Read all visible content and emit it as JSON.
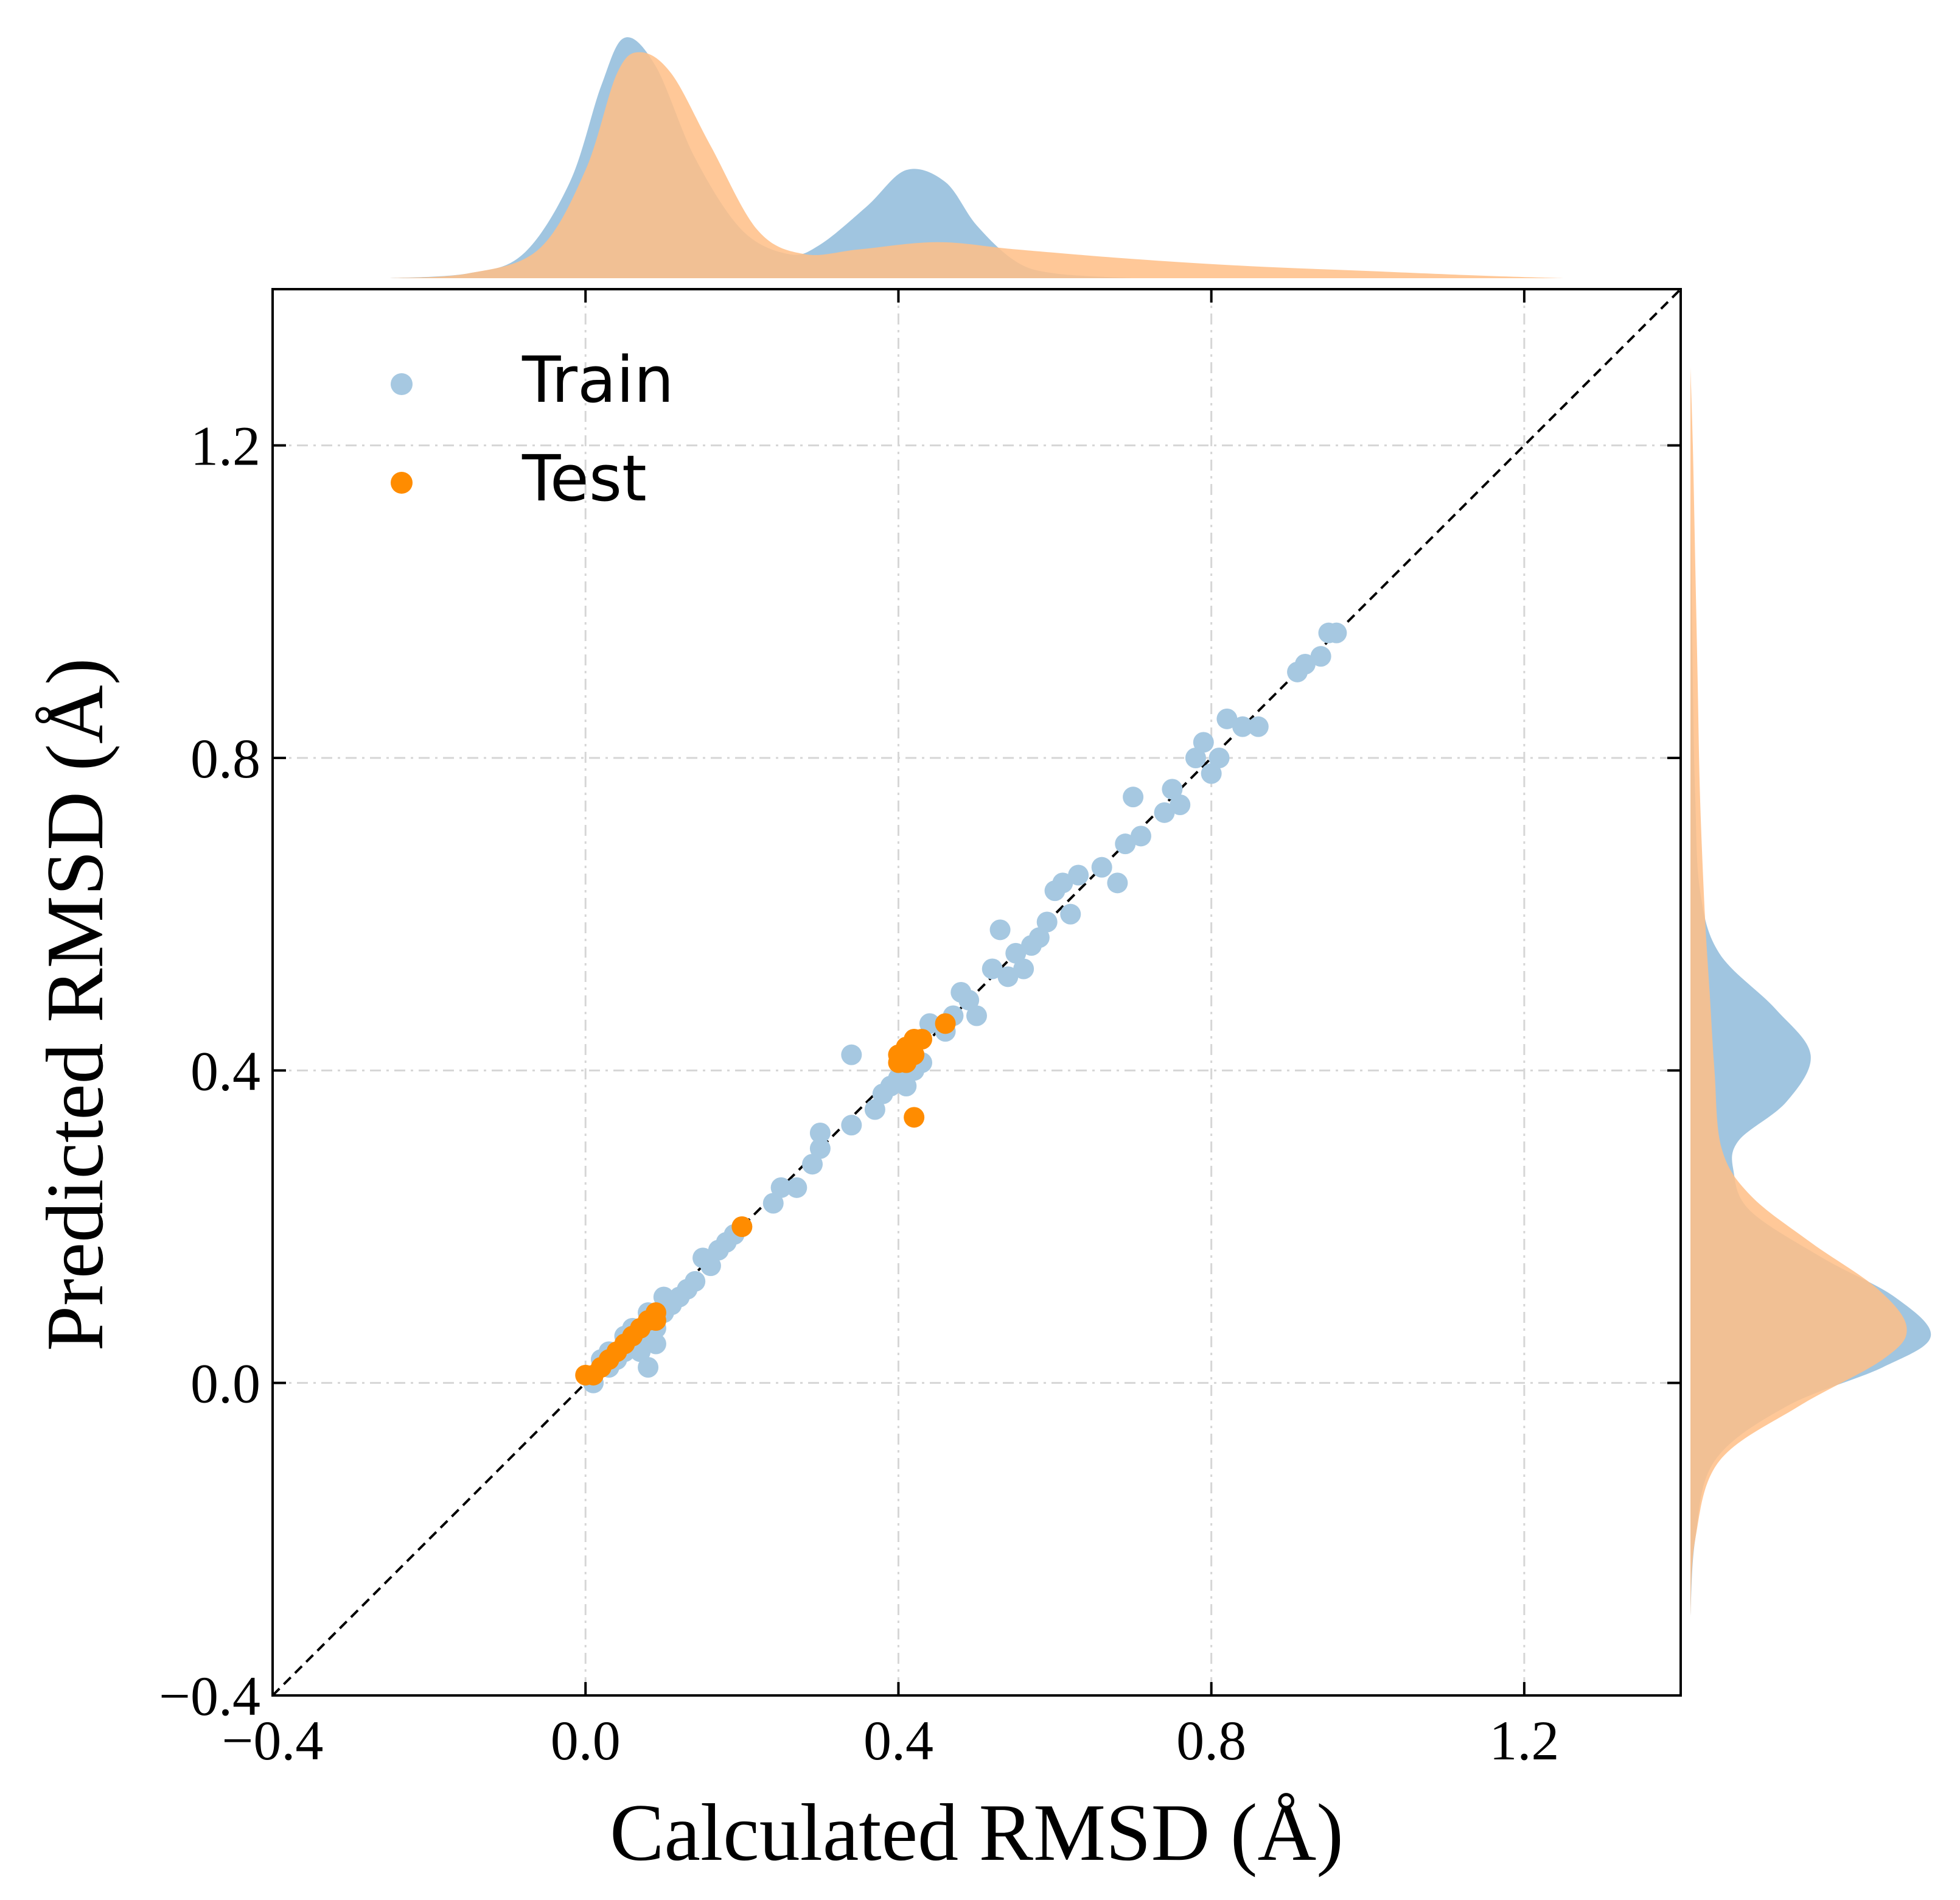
{
  "chart_data": {
    "type": "scatter",
    "xlabel": "Calculated RMSD (Å)",
    "ylabel": "Predicted RMSD (Å)",
    "xlim": [
      -0.4,
      1.4
    ],
    "ylim": [
      -0.4,
      1.4
    ],
    "xticks": [
      -0.4,
      0.0,
      0.4,
      0.8,
      1.2
    ],
    "yticks": [
      -0.4,
      0.0,
      0.4,
      0.8,
      1.2
    ],
    "xtick_labels": [
      "−0.4",
      "0.0",
      "0.4",
      "0.8",
      "1.2"
    ],
    "ytick_labels": [
      "−0.4",
      "0.0",
      "0.4",
      "0.8",
      "1.2"
    ],
    "grid": true,
    "legend_position": "top-left",
    "reference_line": "y = x",
    "series": [
      {
        "name": "Train",
        "color": "#a6c8e1",
        "density_color": "#8fbbdb",
        "points": [
          [
            0.01,
            0.0
          ],
          [
            0.02,
            0.03
          ],
          [
            0.03,
            0.02
          ],
          [
            0.03,
            0.04
          ],
          [
            0.04,
            0.03
          ],
          [
            0.05,
            0.04
          ],
          [
            0.05,
            0.06
          ],
          [
            0.06,
            0.05
          ],
          [
            0.06,
            0.07
          ],
          [
            0.07,
            0.06
          ],
          [
            0.07,
            0.04
          ],
          [
            0.08,
            0.02
          ],
          [
            0.08,
            0.09
          ],
          [
            0.09,
            0.05
          ],
          [
            0.09,
            0.07
          ],
          [
            0.1,
            0.11
          ],
          [
            0.1,
            0.09
          ],
          [
            0.11,
            0.1
          ],
          [
            0.12,
            0.11
          ],
          [
            0.13,
            0.12
          ],
          [
            0.14,
            0.13
          ],
          [
            0.15,
            0.16
          ],
          [
            0.16,
            0.15
          ],
          [
            0.17,
            0.17
          ],
          [
            0.18,
            0.18
          ],
          [
            0.19,
            0.19
          ],
          [
            0.2,
            0.2
          ],
          [
            0.24,
            0.23
          ],
          [
            0.25,
            0.25
          ],
          [
            0.27,
            0.25
          ],
          [
            0.29,
            0.28
          ],
          [
            0.3,
            0.3
          ],
          [
            0.3,
            0.32
          ],
          [
            0.34,
            0.33
          ],
          [
            0.34,
            0.42
          ],
          [
            0.37,
            0.35
          ],
          [
            0.38,
            0.37
          ],
          [
            0.39,
            0.38
          ],
          [
            0.4,
            0.39
          ],
          [
            0.41,
            0.38
          ],
          [
            0.42,
            0.4
          ],
          [
            0.42,
            0.42
          ],
          [
            0.43,
            0.41
          ],
          [
            0.44,
            0.46
          ],
          [
            0.46,
            0.45
          ],
          [
            0.47,
            0.47
          ],
          [
            0.48,
            0.5
          ],
          [
            0.49,
            0.49
          ],
          [
            0.5,
            0.47
          ],
          [
            0.52,
            0.53
          ],
          [
            0.53,
            0.58
          ],
          [
            0.54,
            0.52
          ],
          [
            0.55,
            0.55
          ],
          [
            0.56,
            0.53
          ],
          [
            0.57,
            0.56
          ],
          [
            0.58,
            0.57
          ],
          [
            0.59,
            0.59
          ],
          [
            0.6,
            0.63
          ],
          [
            0.61,
            0.64
          ],
          [
            0.62,
            0.6
          ],
          [
            0.63,
            0.65
          ],
          [
            0.66,
            0.66
          ],
          [
            0.68,
            0.64
          ],
          [
            0.69,
            0.69
          ],
          [
            0.7,
            0.75
          ],
          [
            0.71,
            0.7
          ],
          [
            0.74,
            0.73
          ],
          [
            0.75,
            0.76
          ],
          [
            0.76,
            0.74
          ],
          [
            0.78,
            0.8
          ],
          [
            0.79,
            0.82
          ],
          [
            0.8,
            0.78
          ],
          [
            0.81,
            0.8
          ],
          [
            0.82,
            0.85
          ],
          [
            0.84,
            0.84
          ],
          [
            0.86,
            0.84
          ],
          [
            0.91,
            0.91
          ],
          [
            0.92,
            0.92
          ],
          [
            0.94,
            0.93
          ],
          [
            0.95,
            0.96
          ],
          [
            0.96,
            0.96
          ]
        ],
        "density_x": [
          [
            -0.25,
            0.0
          ],
          [
            -0.15,
            0.02
          ],
          [
            -0.08,
            0.1
          ],
          [
            -0.02,
            0.4
          ],
          [
            0.02,
            0.8
          ],
          [
            0.05,
            1.0
          ],
          [
            0.09,
            0.88
          ],
          [
            0.14,
            0.5
          ],
          [
            0.2,
            0.2
          ],
          [
            0.26,
            0.1
          ],
          [
            0.3,
            0.14
          ],
          [
            0.36,
            0.3
          ],
          [
            0.41,
            0.45
          ],
          [
            0.46,
            0.4
          ],
          [
            0.5,
            0.22
          ],
          [
            0.55,
            0.07
          ],
          [
            0.6,
            0.02
          ],
          [
            0.7,
            0.0
          ]
        ],
        "density_y": [
          [
            -0.3,
            0.0
          ],
          [
            -0.2,
            0.02
          ],
          [
            -0.1,
            0.1
          ],
          [
            -0.03,
            0.4
          ],
          [
            0.02,
            0.8
          ],
          [
            0.06,
            1.0
          ],
          [
            0.11,
            0.85
          ],
          [
            0.16,
            0.55
          ],
          [
            0.22,
            0.25
          ],
          [
            0.27,
            0.18
          ],
          [
            0.31,
            0.2
          ],
          [
            0.36,
            0.4
          ],
          [
            0.42,
            0.5
          ],
          [
            0.48,
            0.35
          ],
          [
            0.55,
            0.12
          ],
          [
            0.63,
            0.04
          ],
          [
            0.75,
            0.02
          ],
          [
            0.9,
            0.01
          ],
          [
            1.15,
            0.0
          ]
        ]
      },
      {
        "name": "Test",
        "color": "#ff8c00",
        "density_color": "#ffbe86",
        "points": [
          [
            0.0,
            0.01
          ],
          [
            0.01,
            0.01
          ],
          [
            0.02,
            0.02
          ],
          [
            0.03,
            0.03
          ],
          [
            0.04,
            0.04
          ],
          [
            0.05,
            0.05
          ],
          [
            0.06,
            0.06
          ],
          [
            0.07,
            0.07
          ],
          [
            0.08,
            0.08
          ],
          [
            0.09,
            0.08
          ],
          [
            0.09,
            0.09
          ],
          [
            0.2,
            0.2
          ],
          [
            0.4,
            0.41
          ],
          [
            0.4,
            0.42
          ],
          [
            0.41,
            0.41
          ],
          [
            0.41,
            0.43
          ],
          [
            0.42,
            0.42
          ],
          [
            0.42,
            0.44
          ],
          [
            0.42,
            0.34
          ],
          [
            0.43,
            0.44
          ],
          [
            0.46,
            0.46
          ]
        ],
        "density_x": [
          [
            -0.25,
            0.0
          ],
          [
            -0.15,
            0.02
          ],
          [
            -0.06,
            0.12
          ],
          [
            0.0,
            0.45
          ],
          [
            0.04,
            0.85
          ],
          [
            0.07,
            0.94
          ],
          [
            0.11,
            0.85
          ],
          [
            0.16,
            0.55
          ],
          [
            0.22,
            0.2
          ],
          [
            0.28,
            0.1
          ],
          [
            0.35,
            0.12
          ],
          [
            0.45,
            0.15
          ],
          [
            0.55,
            0.12
          ],
          [
            0.7,
            0.08
          ],
          [
            0.85,
            0.05
          ],
          [
            1.0,
            0.03
          ],
          [
            1.15,
            0.01
          ],
          [
            1.25,
            0.0
          ]
        ],
        "density_y": [
          [
            -0.3,
            0.0
          ],
          [
            -0.2,
            0.02
          ],
          [
            -0.1,
            0.12
          ],
          [
            -0.03,
            0.45
          ],
          [
            0.03,
            0.8
          ],
          [
            0.07,
            0.9
          ],
          [
            0.12,
            0.78
          ],
          [
            0.18,
            0.5
          ],
          [
            0.24,
            0.25
          ],
          [
            0.3,
            0.13
          ],
          [
            0.4,
            0.1
          ],
          [
            0.5,
            0.08
          ],
          [
            0.6,
            0.06
          ],
          [
            0.75,
            0.04
          ],
          [
            0.9,
            0.03
          ],
          [
            1.05,
            0.02
          ],
          [
            1.2,
            0.01
          ],
          [
            1.3,
            0.0
          ]
        ]
      }
    ]
  },
  "legend": {
    "items": [
      {
        "label": "Train",
        "color": "#a6c8e1"
      },
      {
        "label": "Test",
        "color": "#ff8c00"
      }
    ]
  }
}
